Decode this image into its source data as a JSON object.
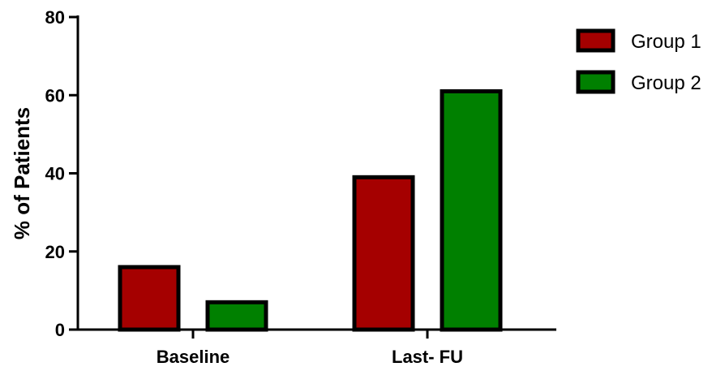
{
  "chart_data": {
    "type": "bar",
    "title": "",
    "xlabel": "",
    "ylabel": "% of Patients",
    "categories": [
      "Baseline",
      "Last- FU"
    ],
    "series": [
      {
        "name": "Group 1",
        "color": "#a50000",
        "values": [
          16,
          39
        ]
      },
      {
        "name": "Group 2",
        "color": "#008000",
        "values": [
          7,
          61
        ]
      }
    ],
    "ylim": [
      0,
      80
    ],
    "yticks": [
      "0",
      "20",
      "40",
      "60",
      "80"
    ],
    "grid": false,
    "legend_position": "top-right"
  }
}
